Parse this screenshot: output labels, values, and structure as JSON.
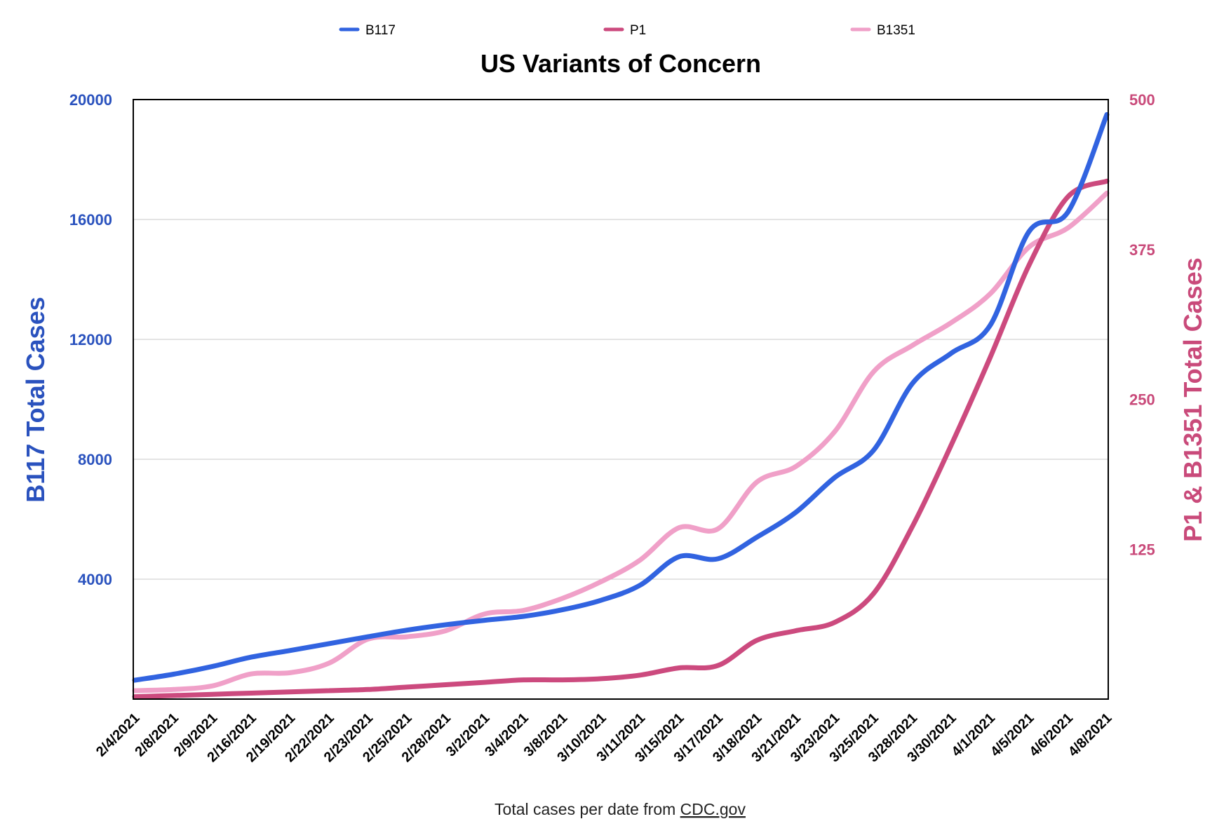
{
  "chart_data": {
    "type": "line",
    "title": "US Variants of Concern",
    "source_prefix": "Total cases per date from ",
    "source_link": "CDC.gov",
    "categories": [
      "2/4/2021",
      "2/8/2021",
      "2/9/2021",
      "2/16/2021",
      "2/19/2021",
      "2/22/2021",
      "2/23/2021",
      "2/25/2021",
      "2/28/2021",
      "3/2/2021",
      "3/4/2021",
      "3/8/2021",
      "3/10/2021",
      "3/11/2021",
      "3/15/2021",
      "3/17/2021",
      "3/18/2021",
      "3/21/2021",
      "3/23/2021",
      "3/25/2021",
      "3/28/2021",
      "3/30/2021",
      "4/1/2021",
      "4/5/2021",
      "4/6/2021",
      "4/8/2021"
    ],
    "y_left": {
      "label": "B117 Total Cases",
      "ylim": [
        0,
        20000
      ],
      "ticks": [
        "4000",
        "8000",
        "12000",
        "16000",
        "20000"
      ],
      "color": "#2a52be"
    },
    "y_right": {
      "label": "P1 & B1351 Total Cases",
      "ylim": [
        0,
        500
      ],
      "ticks": [
        "125",
        "250",
        "375",
        "500"
      ],
      "color": "#c94a7a"
    },
    "grid": true,
    "legend_position": "top",
    "series": [
      {
        "name": "B117",
        "axis": "left",
        "color": "#3163e0",
        "values": [
          630,
          830,
          1090,
          1400,
          1620,
          1850,
          2080,
          2300,
          2480,
          2630,
          2760,
          2980,
          3300,
          3800,
          4750,
          4680,
          5400,
          6230,
          7390,
          8300,
          10530,
          11540,
          12470,
          15600,
          16250,
          19500
        ]
      },
      {
        "name": "P1",
        "axis": "right",
        "color": "#cc4a7e",
        "values": [
          2,
          3,
          4,
          5,
          6,
          7,
          8,
          10,
          12,
          14,
          16,
          16,
          17,
          20,
          26,
          28,
          49,
          57,
          64,
          88,
          144,
          212,
          285,
          362,
          419,
          432
        ]
      },
      {
        "name": "B1351",
        "axis": "right",
        "color": "#f0a0c8",
        "values": [
          7,
          8,
          11,
          21,
          22,
          30,
          50,
          52,
          57,
          71,
          74,
          84,
          98,
          116,
          143,
          142,
          181,
          194,
          223,
          273,
          295,
          314,
          338,
          377,
          393,
          422
        ]
      }
    ]
  }
}
